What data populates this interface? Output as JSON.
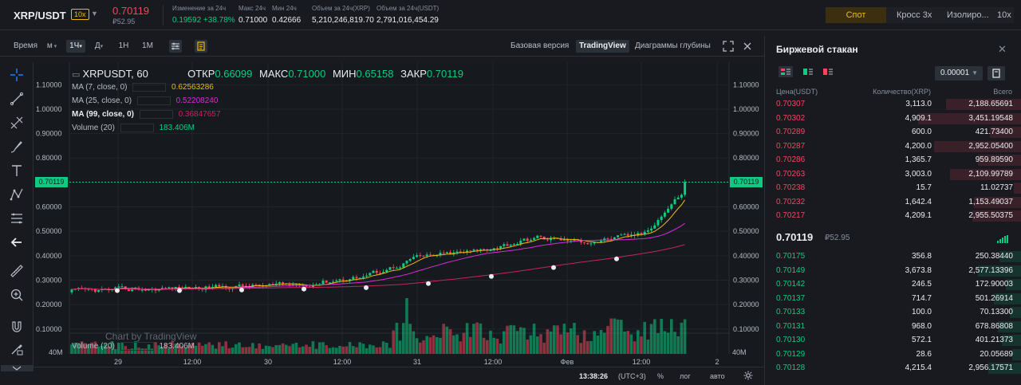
{
  "ticker": {
    "symbol": "XRP/USDT",
    "leverage": "10x",
    "last_price": "0.70119",
    "fiat_price": "₽52.95",
    "stats": [
      {
        "label": "Изменение за 24ч",
        "value": "0.19592 +38.78%",
        "green": true,
        "x": 216
      },
      {
        "label": "Макс 24ч",
        "value": "0.71000",
        "green": false,
        "x": 299
      },
      {
        "label": "Мин 24ч",
        "value": "0.42666",
        "green": false,
        "x": 341
      },
      {
        "label": "Объем за 24ч(XRP)",
        "value": "5,210,246,819.70",
        "green": false,
        "x": 391
      },
      {
        "label": "Объем за 24ч(USDT)",
        "value": "2,791,016,454.29",
        "green": false,
        "x": 472
      }
    ]
  },
  "mode_tabs": {
    "spot": "Спот",
    "cross": "Кросс 3х",
    "isolated": "Изолиро...",
    "isolated_lev": "10x"
  },
  "chart_toolbar": {
    "timeframes": [
      "Время",
      "м",
      "1Ч",
      "Д",
      "1Н",
      "1М"
    ],
    "active": "1Ч",
    "views": [
      "Базовая версия",
      "TradingView",
      "Диаграммы глубины"
    ],
    "active_view": "TradingView"
  },
  "chart_header": {
    "title": "XRPUSDT, 60",
    "open_label": "ОТКР",
    "open": "0.66099",
    "high_label": "МАКС",
    "high": "0.71000",
    "low_label": "МИН",
    "low": "0.65158",
    "close_label": "ЗАКР",
    "close": "0.70119",
    "ma7_label": "MA (7, close, 0)",
    "ma7_value": "0.62563286",
    "ma25_label": "MA (25, close, 0)",
    "ma25_value": "0.52208240",
    "ma99_label": "MA (99, close, 0)",
    "ma99_value": "0.36847657",
    "vol_label": "Volume (20)",
    "vol_value": "183.406M",
    "vol_label2": "Volume (20)",
    "vol_value2": "183.406M",
    "watermark": "Chart by TradingView",
    "price_tag": "0.70119",
    "vol_axis": "40M"
  },
  "chart_data": {
    "type": "candlestick",
    "price_ticks": [
      "1.10000",
      "1.00000",
      "0.90000",
      "0.80000",
      "0.70000",
      "0.60000",
      "0.50000",
      "0.40000",
      "0.30000",
      "0.20000",
      "0.10000"
    ],
    "price_tick_values": [
      1.1,
      1.0,
      0.9,
      0.8,
      0.7,
      0.6,
      0.5,
      0.4,
      0.3,
      0.2,
      0.1
    ],
    "x_ticks": [
      "29",
      "12:00",
      "30",
      "12:00",
      "31",
      "12:00",
      "Фев",
      "12:00",
      "2"
    ],
    "last": 0.70119,
    "colors": {
      "up": "#0ecb81",
      "down": "#f6465d",
      "ma7": "#f0b90b",
      "ma25": "#d62dd6",
      "ma99": "#c5245f"
    }
  },
  "bottom_bar": {
    "time": "13:38:26",
    "tz": "(UTC+3)",
    "pct": "%",
    "log": "лог",
    "auto": "авто"
  },
  "orderbook": {
    "title": "Биржевой стакан",
    "precision": "0.00001",
    "headers": {
      "price": "Цена(USDT)",
      "qty": "Количество(XRP)",
      "total": "Всего"
    },
    "asks": [
      {
        "p": "0.70307",
        "q": "3,113.0",
        "t": "2,188.65691",
        "w": 95
      },
      {
        "p": "0.70302",
        "q": "4,909.1",
        "t": "3,451.19548",
        "w": 130
      },
      {
        "p": "0.70289",
        "q": "600.0",
        "t": "421.73400",
        "w": 40
      },
      {
        "p": "0.70287",
        "q": "4,200.0",
        "t": "2,952.05400",
        "w": 110
      },
      {
        "p": "0.70286",
        "q": "1,365.7",
        "t": "959.89590",
        "w": 55
      },
      {
        "p": "0.70263",
        "q": "3,003.0",
        "t": "2,109.99789",
        "w": 90
      },
      {
        "p": "0.70238",
        "q": "15.7",
        "t": "11.02737",
        "w": 10
      },
      {
        "p": "0.70232",
        "q": "1,642.4",
        "t": "1,153.49037",
        "w": 60
      },
      {
        "p": "0.70217",
        "q": "4,209.1",
        "t": "2,955.50375",
        "w": 62
      }
    ],
    "mid_price": "0.70119",
    "mid_fiat": "₽52.95",
    "bids": [
      {
        "p": "0.70175",
        "q": "356.8",
        "t": "250.38440",
        "w": 28
      },
      {
        "p": "0.70149",
        "q": "3,673.8",
        "t": "2,577.13396",
        "w": 55
      },
      {
        "p": "0.70142",
        "q": "246.5",
        "t": "172.90003",
        "w": 20
      },
      {
        "p": "0.70137",
        "q": "714.7",
        "t": "501.26914",
        "w": 35
      },
      {
        "p": "0.70133",
        "q": "100.0",
        "t": "70.13300",
        "w": 15
      },
      {
        "p": "0.70131",
        "q": "968.0",
        "t": "678.86808",
        "w": 30
      },
      {
        "p": "0.70130",
        "q": "572.1",
        "t": "401.21373",
        "w": 25
      },
      {
        "p": "0.70129",
        "q": "28.6",
        "t": "20.05689",
        "w": 12
      },
      {
        "p": "0.70128",
        "q": "4,215.4",
        "t": "2,956.17571",
        "w": 42
      }
    ]
  }
}
